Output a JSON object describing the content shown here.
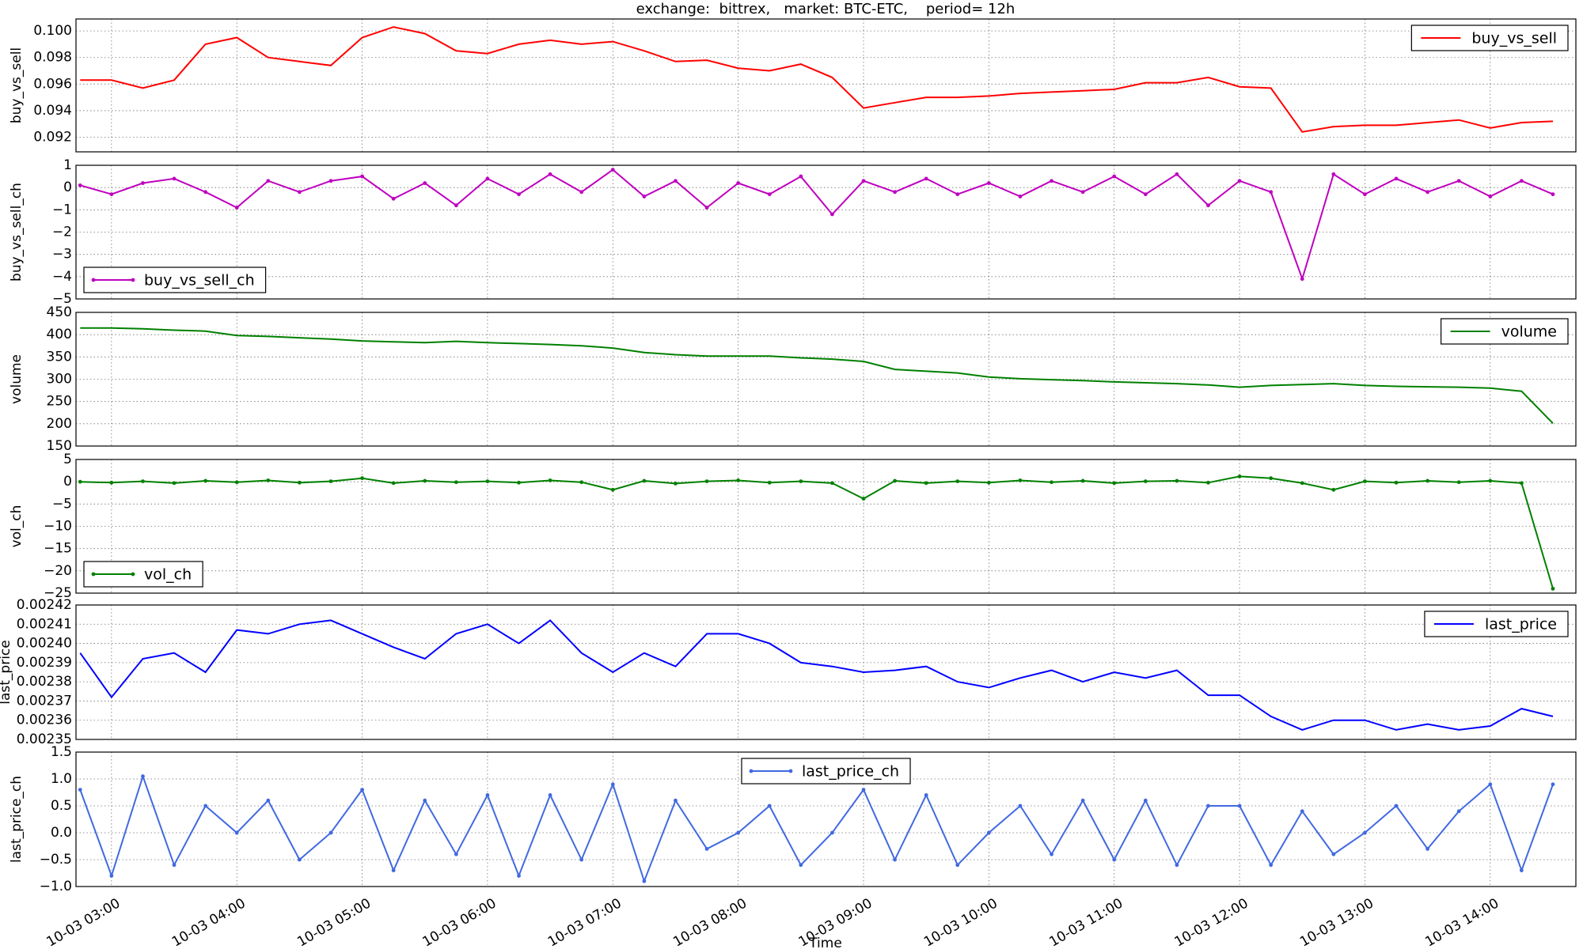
{
  "chart_data": {
    "type": "line",
    "title": "exchange:  bittrex,   market: BTC-ETC,    period= 12h",
    "xlabel": "Time",
    "xlim": [
      "10-03 02:43",
      "10-03 14:41"
    ],
    "xticks": [
      "10-03 03:00",
      "10-03 04:00",
      "10-03 05:00",
      "10-03 06:00",
      "10-03 07:00",
      "10-03 08:00",
      "10-03 09:00",
      "10-03 10:00",
      "10-03 11:00",
      "10-03 12:00",
      "10-03 13:00",
      "10-03 14:00"
    ],
    "grid": true,
    "x": [
      "10-03 02:45",
      "10-03 03:00",
      "10-03 03:15",
      "10-03 03:30",
      "10-03 03:45",
      "10-03 04:00",
      "10-03 04:15",
      "10-03 04:30",
      "10-03 04:45",
      "10-03 05:00",
      "10-03 05:15",
      "10-03 05:30",
      "10-03 05:45",
      "10-03 06:00",
      "10-03 06:15",
      "10-03 06:30",
      "10-03 06:45",
      "10-03 07:00",
      "10-03 07:15",
      "10-03 07:30",
      "10-03 07:45",
      "10-03 08:00",
      "10-03 08:15",
      "10-03 08:30",
      "10-03 08:45",
      "10-03 09:00",
      "10-03 09:15",
      "10-03 09:30",
      "10-03 09:45",
      "10-03 10:00",
      "10-03 10:15",
      "10-03 10:30",
      "10-03 10:45",
      "10-03 11:00",
      "10-03 11:15",
      "10-03 11:30",
      "10-03 11:45",
      "10-03 12:00",
      "10-03 12:15",
      "10-03 12:30",
      "10-03 12:45",
      "10-03 13:00",
      "10-03 13:15",
      "10-03 13:30",
      "10-03 13:45",
      "10-03 14:00",
      "10-03 14:15",
      "10-03 14:30"
    ],
    "panels": [
      {
        "ylabel": "buy_vs_sell",
        "ylim": [
          0.0909,
          0.1009
        ],
        "yticks": [
          0.092,
          0.094,
          0.096,
          0.098,
          {
            "value": 0.1,
            "label": "0.100"
          }
        ],
        "legend": "upper right",
        "series": [
          {
            "name": "buy_vs_sell",
            "color": "#ff0000",
            "marker": false,
            "values": [
              0.0963,
              0.0963,
              0.0957,
              0.0963,
              0.099,
              0.0995,
              0.098,
              0.0977,
              0.0974,
              0.0995,
              0.1003,
              0.0998,
              0.0985,
              0.0983,
              0.099,
              0.0993,
              0.099,
              0.0992,
              0.0985,
              0.0977,
              0.0978,
              0.0972,
              0.097,
              0.0975,
              0.0965,
              0.0942,
              0.0946,
              0.095,
              0.095,
              0.0951,
              0.0953,
              0.0954,
              0.0955,
              0.0956,
              0.0961,
              0.0961,
              0.0965,
              0.0958,
              0.0957,
              0.0924,
              0.0928,
              0.0929,
              0.0929,
              0.0931,
              0.0933,
              0.0927,
              0.0931,
              0.0932
            ]
          }
        ]
      },
      {
        "ylabel": "buy_vs_sell_ch",
        "ylim": [
          -5,
          1
        ],
        "yticks": [
          {
            "value": -5,
            "label": "−5"
          },
          {
            "value": -4,
            "label": "−4"
          },
          {
            "value": -3,
            "label": "−3"
          },
          {
            "value": -2,
            "label": "−2"
          },
          {
            "value": -1,
            "label": "−1"
          },
          0,
          1
        ],
        "legend": "lower left",
        "series": [
          {
            "name": "buy_vs_sell_ch",
            "color": "#bf00bf",
            "marker": true,
            "values": [
              0.1,
              -0.3,
              0.2,
              0.4,
              -0.2,
              -0.9,
              0.3,
              -0.2,
              0.3,
              0.5,
              -0.5,
              0.2,
              -0.8,
              0.4,
              -0.3,
              0.6,
              -0.2,
              0.8,
              -0.4,
              0.3,
              -0.9,
              0.2,
              -0.3,
              0.5,
              -1.2,
              0.3,
              -0.2,
              0.4,
              -0.3,
              0.2,
              -0.4,
              0.3,
              -0.2,
              0.5,
              -0.3,
              0.6,
              -0.8,
              0.3,
              -0.2,
              -4.1,
              0.6,
              -0.3,
              0.4,
              -0.2,
              0.3,
              -0.4,
              0.3,
              -0.3
            ]
          }
        ]
      },
      {
        "ylabel": "volume",
        "ylim": [
          150,
          450
        ],
        "yticks": [
          150,
          200,
          250,
          300,
          350,
          400,
          450
        ],
        "legend": "upper right",
        "series": [
          {
            "name": "volume",
            "color": "#008000",
            "marker": false,
            "values": [
              415,
              415,
              413,
              410,
              408,
              398,
              396,
              393,
              390,
              386,
              384,
              382,
              385,
              382,
              380,
              378,
              375,
              370,
              360,
              355,
              352,
              352,
              352,
              348,
              345,
              340,
              322,
              318,
              314,
              305,
              301,
              299,
              297,
              294,
              292,
              290,
              287,
              282,
              286,
              288,
              290,
              286,
              284,
              283,
              282,
              280,
              273,
              201
            ]
          }
        ]
      },
      {
        "ylabel": "vol_ch",
        "ylim": [
          -25,
          5
        ],
        "yticks": [
          {
            "value": -25,
            "label": "−25"
          },
          {
            "value": -20,
            "label": "−20"
          },
          {
            "value": -15,
            "label": "−15"
          },
          {
            "value": -10,
            "label": "−10"
          },
          {
            "value": -5,
            "label": "−5"
          },
          0,
          5
        ],
        "legend": "lower left",
        "series": [
          {
            "name": "vol_ch",
            "color": "#008000",
            "marker": true,
            "values": [
              0,
              -0.2,
              0.1,
              -0.3,
              0.2,
              -0.1,
              0.3,
              -0.2,
              0.1,
              0.8,
              -0.3,
              0.2,
              -0.1,
              0.1,
              -0.2,
              0.3,
              -0.1,
              -1.8,
              0.2,
              -0.4,
              0.1,
              0.3,
              -0.2,
              0.1,
              -0.3,
              -3.8,
              0.2,
              -0.3,
              0.1,
              -0.2,
              0.3,
              -0.1,
              0.2,
              -0.3,
              0.1,
              0.2,
              -0.2,
              1.2,
              0.8,
              -0.3,
              -1.8,
              0.1,
              -0.2,
              0.2,
              -0.1,
              0.2,
              -0.3,
              -24
            ]
          }
        ]
      },
      {
        "ylabel": "last_price",
        "ylim": [
          0.00235,
          0.00242
        ],
        "yticks": [
          0.00235,
          0.00236,
          0.00237,
          0.00238,
          0.00239,
          {
            "value": 0.0024,
            "label": "0.00240"
          },
          0.00241,
          0.00242
        ],
        "legend": "upper right",
        "series": [
          {
            "name": "last_price",
            "color": "#0000ff",
            "marker": false,
            "values": [
              0.002395,
              0.002372,
              0.002392,
              0.002395,
              0.002385,
              0.002407,
              0.002405,
              0.00241,
              0.002412,
              0.002405,
              0.002398,
              0.002392,
              0.002405,
              0.00241,
              0.0024,
              0.002412,
              0.002395,
              0.002385,
              0.002395,
              0.002388,
              0.002405,
              0.002405,
              0.0024,
              0.00239,
              0.002388,
              0.002385,
              0.002386,
              0.002388,
              0.00238,
              0.002377,
              0.002382,
              0.002386,
              0.00238,
              0.002385,
              0.002382,
              0.002386,
              0.002373,
              0.002373,
              0.002362,
              0.002355,
              0.00236,
              0.00236,
              0.002355,
              0.002358,
              0.002355,
              0.002357,
              0.002366,
              0.002362
            ]
          }
        ]
      },
      {
        "ylabel": "last_price_ch",
        "ylim": [
          -1,
          1.5
        ],
        "yticks": [
          {
            "value": -1,
            "label": "−1.0"
          },
          {
            "value": -0.5,
            "label": "−0.5"
          },
          {
            "value": 0,
            "label": "0.0"
          },
          {
            "value": 0.5,
            "label": "0.5"
          },
          {
            "value": 1,
            "label": "1.0"
          },
          {
            "value": 1.5,
            "label": "1.5"
          }
        ],
        "legend": "upper center",
        "series": [
          {
            "name": "last_price_ch",
            "color": "#4169e1",
            "marker": true,
            "values": [
              0.8,
              -0.8,
              1.05,
              -0.6,
              0.5,
              0,
              0.6,
              -0.5,
              0,
              0.8,
              -0.7,
              0.6,
              -0.4,
              0.7,
              -0.8,
              0.7,
              -0.5,
              0.9,
              -0.9,
              0.6,
              -0.3,
              0,
              0.5,
              -0.6,
              0,
              0.8,
              -0.5,
              0.7,
              -0.6,
              0,
              0.5,
              -0.4,
              0.6,
              -0.5,
              0.6,
              -0.6,
              0.5,
              0.5,
              -0.6,
              0.4,
              -0.4,
              0,
              0.5,
              -0.3,
              0.4,
              0.9,
              -0.7,
              0.9
            ]
          }
        ]
      }
    ]
  }
}
